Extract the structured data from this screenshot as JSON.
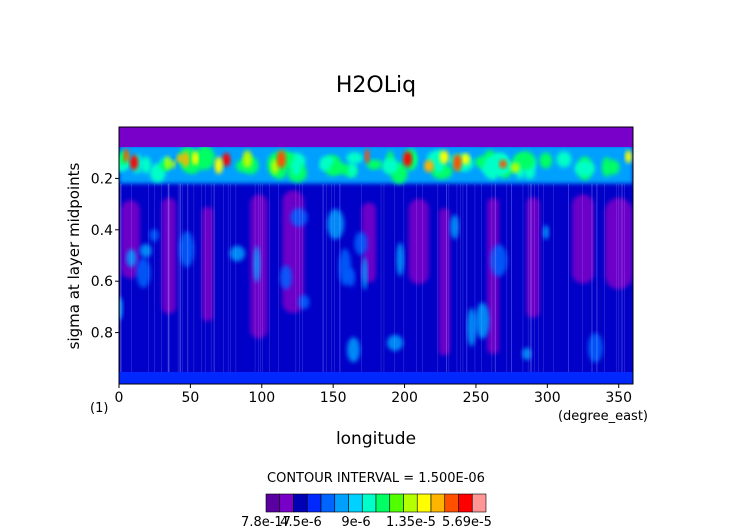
{
  "chart_data": {
    "type": "heatmap",
    "title": "H2OLiq",
    "xlabel": "longitude",
    "ylabel": "sigma at layer midpoints",
    "x_unit_label": "(degree_east)",
    "corner_label": "(1)",
    "xlim": [
      0,
      360
    ],
    "ylim": [
      0.0,
      1.0
    ],
    "y_inverted": true,
    "x_ticks": [
      "0",
      "50",
      "100",
      "150",
      "200",
      "250",
      "300",
      "350"
    ],
    "y_ticks": [
      "0.2",
      "0.4",
      "0.6",
      "0.8"
    ],
    "contour_interval_text": "CONTOUR INTERVAL = 1.500E-06",
    "colorbar": {
      "tick_labels": [
        "7.8e-17",
        "4.5e-6",
        "9e-6",
        "1.35e-5",
        "5.69e-5"
      ],
      "colors": [
        "#5a00a0",
        "#7800c8",
        "#0000b4",
        "#0028ff",
        "#0064ff",
        "#00a0ff",
        "#00d2ff",
        "#00ffc8",
        "#00ff64",
        "#50ff00",
        "#b4ff00",
        "#ffff00",
        "#ffb400",
        "#ff5000",
        "#ff0000",
        "#ff9696"
      ]
    },
    "levels": {
      "top_band": "violet",
      "upper_peak_layer_sigma": [
        0.07,
        0.22
      ],
      "upper_peak_colors": [
        "cyan",
        "green",
        "yellow",
        "orange",
        "red"
      ],
      "background": "blue",
      "low_pockets": "violet"
    },
    "grid": false
  }
}
